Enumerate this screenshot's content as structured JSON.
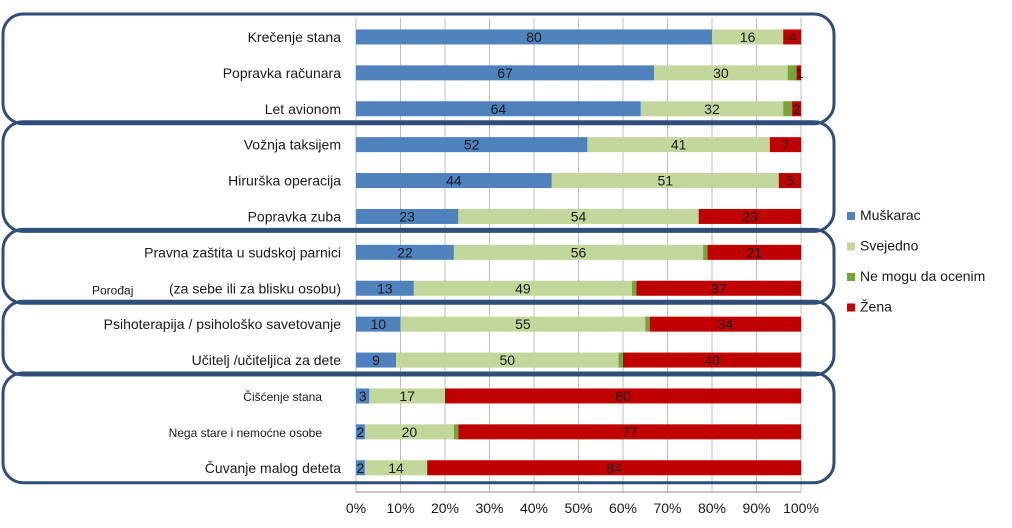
{
  "chart_data": {
    "type": "bar",
    "orientation": "horizontal",
    "stacked": "percent",
    "title": "",
    "xlabel": "",
    "ylabel": "",
    "xlim": [
      0,
      100
    ],
    "x_ticks": [
      "0%",
      "10%",
      "20%",
      "30%",
      "40%",
      "50%",
      "60%",
      "70%",
      "80%",
      "90%",
      "100%"
    ],
    "grid": true,
    "legend_position": "right",
    "categories": [
      "Krečenje stana",
      "Popravka računara",
      "Let avionom",
      "Vožnja taksijem",
      "Hirurška operacija",
      "Popravka zuba",
      "Pravna zaštita u sudskoj parnici",
      "(za sebe ili za blisku osobu)",
      "Psihoterapija / psihološko savetovanje",
      "Učitelj /učiteljica za dete",
      "Čišćenje stana",
      "Nega stare i nemoćne osobe",
      "Čuvanje malog deteta"
    ],
    "extra_labels": [
      "Porođaj"
    ],
    "series": [
      {
        "name": "Muškarac",
        "color": "#4F81BD",
        "values": [
          80,
          67,
          64,
          52,
          44,
          23,
          22,
          13,
          10,
          9,
          3,
          2,
          2
        ]
      },
      {
        "name": "Svejedno",
        "color": "#C3D69B",
        "values": [
          16,
          30,
          32,
          41,
          51,
          54,
          56,
          49,
          55,
          50,
          17,
          20,
          14
        ]
      },
      {
        "name": "Ne mogu da ocenim",
        "color": "#77A33A",
        "values": [
          0,
          2,
          2,
          0,
          0,
          0,
          1,
          1,
          1,
          1,
          0,
          1,
          0
        ]
      },
      {
        "name": "Žena",
        "color": "#C00000",
        "values": [
          4,
          1,
          2,
          7,
          5,
          23,
          21,
          37,
          34,
          40,
          80,
          77,
          84
        ]
      }
    ],
    "data_labels": [
      [
        "80",
        "16",
        "",
        "4"
      ],
      [
        "67",
        "30",
        "",
        "1"
      ],
      [
        "64",
        "32",
        "",
        "2"
      ],
      [
        "52",
        "41",
        "",
        "7"
      ],
      [
        "44",
        "51",
        "",
        "5"
      ],
      [
        "23",
        "54",
        "",
        "23"
      ],
      [
        "22",
        "56",
        "",
        "21"
      ],
      [
        "13",
        "49",
        "",
        "37"
      ],
      [
        "10",
        "55",
        "",
        "34"
      ],
      [
        "9",
        "50",
        "",
        "40"
      ],
      [
        "3",
        "17",
        "",
        "80"
      ],
      [
        "2",
        "20",
        "",
        "77"
      ],
      [
        "2",
        "14",
        "",
        "84"
      ]
    ],
    "groups": [
      [
        0,
        2
      ],
      [
        3,
        5
      ],
      [
        6,
        7
      ],
      [
        8,
        9
      ],
      [
        10,
        12
      ]
    ],
    "group_frame_color": "#2F4E7A"
  }
}
